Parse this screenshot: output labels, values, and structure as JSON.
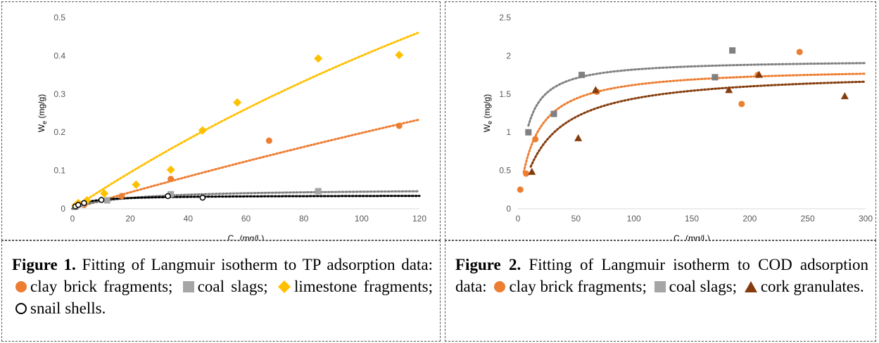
{
  "chart_data": [
    {
      "type": "scatter",
      "title": "",
      "xlabel_main": "C",
      "xlabel_sub": "e",
      "xlabel_unit": " (mg/L)",
      "ylabel_main": "W",
      "ylabel_sub": "e",
      "ylabel_unit": " (mg/g)",
      "xlim": [
        0,
        120
      ],
      "ylim": [
        0,
        0.5
      ],
      "xticks": [
        0,
        20,
        40,
        60,
        80,
        100,
        120
      ],
      "xtick_labels": [
        "0",
        "20",
        "40",
        "60",
        "80",
        "100",
        "120"
      ],
      "yticks": [
        0,
        0.1,
        0.2,
        0.3,
        0.4,
        0.5
      ],
      "ytick_labels": [
        "0",
        "0.1",
        "0.2",
        "0.3",
        "0.4",
        "0.5"
      ],
      "grid": false,
      "series": [
        {
          "marker": "circle",
          "color": "#ED7D31",
          "fit_color": "#ED7D31",
          "fit": {
            "qmax": 2.0,
            "K": 0.0011
          },
          "points": [
            [
              1,
              0.005
            ],
            [
              2,
              0.012
            ],
            [
              4,
              0.01
            ],
            [
              17,
              0.033
            ],
            [
              34,
              0.078
            ],
            [
              68,
              0.178
            ],
            [
              113,
              0.217
            ]
          ]
        },
        {
          "marker": "square",
          "color": "#A5A5A5",
          "fit_color": "#808080",
          "fit": {
            "qmax": 0.052,
            "K": 0.06
          },
          "points": [
            [
              1,
              0.005
            ],
            [
              3,
              0.012
            ],
            [
              12,
              0.022
            ],
            [
              34,
              0.038
            ],
            [
              85,
              0.046
            ]
          ]
        },
        {
          "marker": "diamond",
          "color": "#FFC000",
          "fit_color": "#FFC000",
          "fit": {
            "qmax": 2.0,
            "K": 0.0025
          },
          "points": [
            [
              1,
              0.008
            ],
            [
              2,
              0.015
            ],
            [
              5,
              0.022
            ],
            [
              11,
              0.04
            ],
            [
              22,
              0.063
            ],
            [
              34,
              0.102
            ],
            [
              45,
              0.205
            ],
            [
              57,
              0.278
            ],
            [
              85,
              0.393
            ],
            [
              113,
              0.402
            ]
          ]
        },
        {
          "marker": "open-circle",
          "color": "#000000",
          "fit_color": "#000000",
          "fit": {
            "qmax": 0.035,
            "K": 0.2
          },
          "points": [
            [
              1,
              0.006
            ],
            [
              2,
              0.01
            ],
            [
              4,
              0.015
            ],
            [
              10,
              0.023
            ],
            [
              33,
              0.033
            ],
            [
              45,
              0.029
            ]
          ]
        }
      ]
    },
    {
      "type": "scatter",
      "title": "",
      "xlabel_main": "C",
      "xlabel_sub": "e",
      "xlabel_unit": " (mg/L)",
      "ylabel_main": "W",
      "ylabel_sub": "e",
      "ylabel_unit": " (mg/g)",
      "xlim": [
        0,
        300
      ],
      "ylim": [
        0,
        2.5
      ],
      "xticks": [
        0,
        50,
        100,
        150,
        200,
        250,
        300
      ],
      "xtick_labels": [
        "0",
        "50",
        "100",
        "150",
        "200",
        "250",
        "300"
      ],
      "yticks": [
        0,
        0.5,
        1,
        1.5,
        2,
        2.5
      ],
      "ytick_labels": [
        "0",
        "0.5",
        "1",
        "1.5",
        "2",
        "2.5"
      ],
      "grid": false,
      "series": [
        {
          "marker": "circle",
          "color": "#ED7D31",
          "fit_color": "#ED7D31",
          "fit": {
            "qmax": 1.85,
            "K": 0.07,
            "xmin": 5
          },
          "points": [
            [
              2,
              0.25
            ],
            [
              7,
              0.46
            ],
            [
              15,
              0.91
            ],
            [
              68,
              1.53
            ],
            [
              193,
              1.37
            ],
            [
              207,
              1.75
            ],
            [
              243,
              2.05
            ]
          ]
        },
        {
          "marker": "square",
          "color": "#808080",
          "fit_color": "#808080",
          "fit": {
            "qmax": 1.95,
            "K": 0.14,
            "xmin": 9
          },
          "points": [
            [
              9,
              1.0
            ],
            [
              31,
              1.24
            ],
            [
              55,
              1.75
            ],
            [
              170,
              1.72
            ],
            [
              185,
              2.07
            ]
          ]
        },
        {
          "marker": "triangle",
          "color": "#843C0C",
          "fit_color": "#843C0C",
          "fit": {
            "qmax": 1.8,
            "K": 0.04,
            "xmin": 11
          },
          "points": [
            [
              12,
              0.48
            ],
            [
              52,
              0.92
            ],
            [
              67,
              1.55
            ],
            [
              182,
              1.55
            ],
            [
              208,
              1.75
            ],
            [
              282,
              1.47
            ]
          ]
        }
      ]
    }
  ],
  "captions": {
    "fig1": {
      "label": "Figure 1.",
      "text_a": " Fitting of Langmuir isotherm to TP adsorption data:",
      "item1": "clay brick fragments;",
      "item2": "coal slags;",
      "item3": "limestone fragments;",
      "item4": "snail shells."
    },
    "fig2": {
      "label": "Figure 2.",
      "text_a": " Fitting of Langmuir isotherm to COD adsorption data:",
      "item1": "clay brick fragments;",
      "item2": "coal slags;",
      "item3": "cork granulates."
    }
  },
  "colors": {
    "clay": "#ED7D31",
    "coal": "#A5A5A5",
    "limestone": "#FFC000",
    "snail": "#000000",
    "cork": "#843C0C"
  }
}
